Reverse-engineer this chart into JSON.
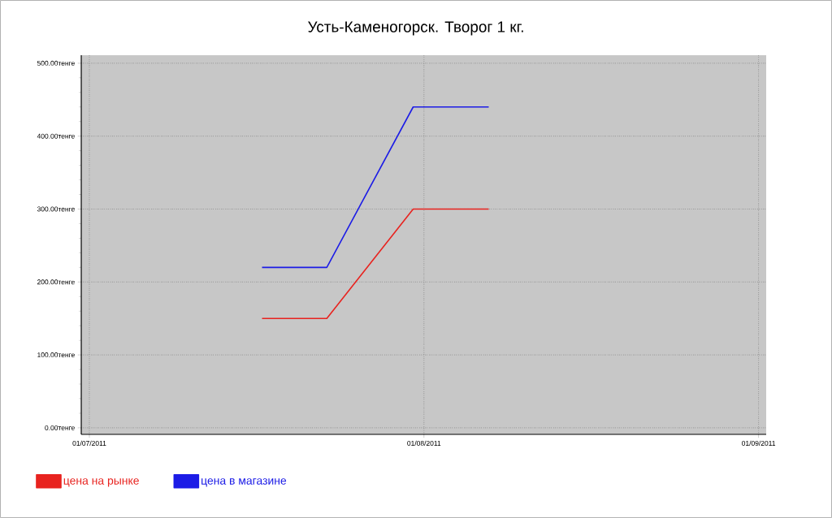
{
  "chart_data": {
    "type": "line",
    "title": "Усть-Каменогорск. Творог 1 кг.",
    "x": [
      "2011-07-17",
      "2011-07-23",
      "2011-07-31",
      "2011-08-07"
    ],
    "series": [
      {
        "name": "цена на рынке",
        "color": "#e8231f",
        "values": [
          150,
          150,
          300,
          300
        ]
      },
      {
        "name": "цена в магазине",
        "color": "#1c1ce6",
        "values": [
          220,
          220,
          440,
          440
        ]
      }
    ],
    "xlim": [
      "2011-06-30T06:00",
      "2011-09-01T17:00"
    ],
    "xticks": [
      {
        "value": "2011-07-01",
        "label": "01/07/2011"
      },
      {
        "value": "2011-08-01",
        "label": "01/08/2011"
      },
      {
        "value": "2011-09-01",
        "label": "01/09/2011"
      }
    ],
    "ylim": [
      -9,
      511
    ],
    "yticks": [
      {
        "value": 0,
        "label": "0.00тенге"
      },
      {
        "value": 100,
        "label": "100.00тенге"
      },
      {
        "value": 200,
        "label": "200.00тенге"
      },
      {
        "value": 300,
        "label": "300.00тенге"
      },
      {
        "value": 400,
        "label": "400.00тенге"
      },
      {
        "value": 500,
        "label": "500.00тенге"
      }
    ],
    "grid": true,
    "legend": "bottom left",
    "marker": "none",
    "line_style": "solid"
  }
}
